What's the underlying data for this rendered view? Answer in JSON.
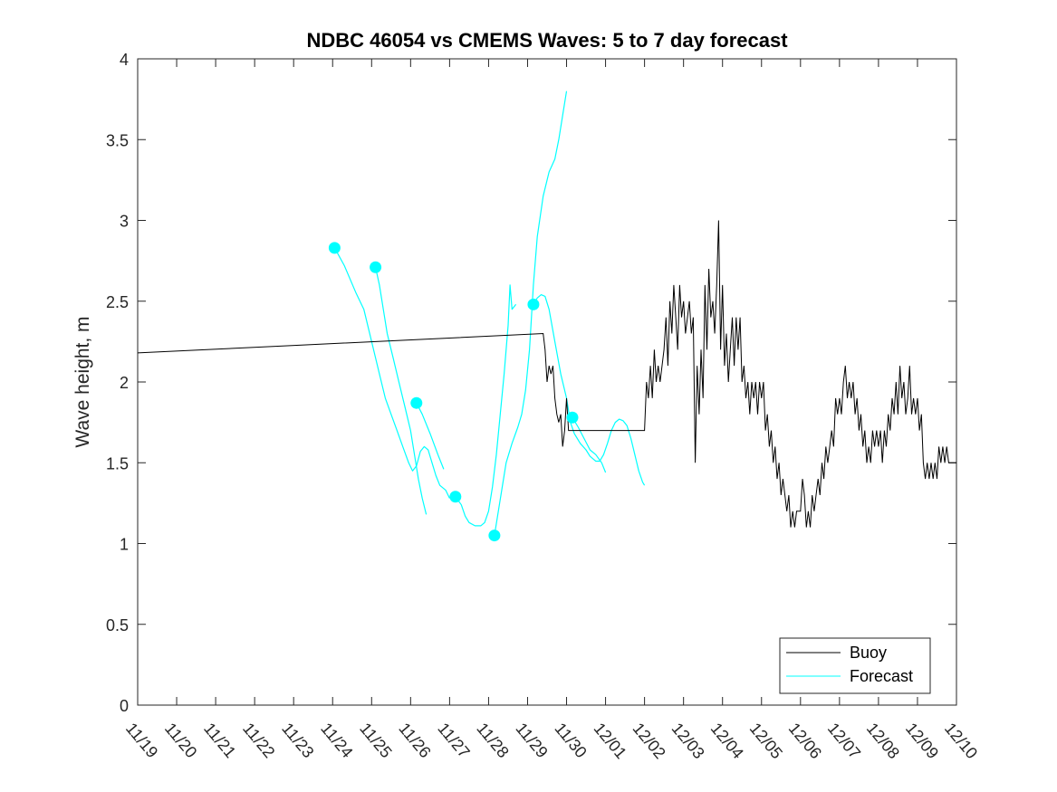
{
  "chart_data": {
    "type": "line",
    "title": "NDBC 46054 vs CMEMS Waves: 5 to 7 day forecast",
    "xlabel": "",
    "ylabel": "Wave height, m",
    "xlim": [
      0,
      21
    ],
    "ylim": [
      0,
      4
    ],
    "x_units": "days since 11/19",
    "x_tick_values": [
      0,
      1,
      2,
      3,
      4,
      5,
      6,
      7,
      8,
      9,
      10,
      11,
      12,
      13,
      14,
      15,
      16,
      17,
      18,
      19,
      20,
      21
    ],
    "x_tick_labels": [
      "11/19",
      "11/20",
      "11/21",
      "11/22",
      "11/23",
      "11/24",
      "11/25",
      "11/26",
      "11/27",
      "11/28",
      "11/29",
      "11/30",
      "12/01",
      "12/02",
      "12/03",
      "12/04",
      "12/05",
      "12/06",
      "12/07",
      "12/08",
      "12/09",
      "12/10"
    ],
    "y_tick_values": [
      0,
      0.5,
      1,
      1.5,
      2,
      2.5,
      3,
      3.5,
      4
    ],
    "y_tick_labels": [
      "0",
      "0.5",
      "1",
      "1.5",
      "2",
      "2.5",
      "3",
      "3.5",
      "4"
    ],
    "grid": false,
    "legend_position": "bottom-right",
    "legend": [
      {
        "label": "Buoy",
        "color": "#000000"
      },
      {
        "label": "Forecast",
        "color": "#00ffff"
      }
    ],
    "series": [
      {
        "name": "Buoy",
        "color": "#000000",
        "points": [
          [
            0.0,
            2.18
          ],
          [
            10.4,
            2.3
          ],
          [
            10.45,
            2.2
          ],
          [
            10.5,
            2.0
          ],
          [
            10.55,
            2.1
          ],
          [
            10.6,
            2.05
          ],
          [
            10.65,
            2.1
          ],
          [
            10.7,
            1.9
          ],
          [
            10.75,
            1.8
          ],
          [
            10.8,
            1.75
          ],
          [
            10.85,
            1.8
          ],
          [
            10.9,
            1.6
          ],
          [
            10.95,
            1.7
          ],
          [
            11.0,
            1.9
          ],
          [
            11.05,
            1.7
          ],
          [
            13.0,
            1.7
          ],
          [
            13.05,
            2.0
          ],
          [
            13.1,
            1.9
          ],
          [
            13.15,
            2.1
          ],
          [
            13.2,
            1.9
          ],
          [
            13.25,
            2.2
          ],
          [
            13.3,
            2.0
          ],
          [
            13.35,
            2.1
          ],
          [
            13.4,
            2.0
          ],
          [
            13.5,
            2.2
          ],
          [
            13.55,
            2.4
          ],
          [
            13.6,
            2.1
          ],
          [
            13.65,
            2.5
          ],
          [
            13.7,
            2.3
          ],
          [
            13.75,
            2.6
          ],
          [
            13.8,
            2.4
          ],
          [
            13.85,
            2.2
          ],
          [
            13.9,
            2.6
          ],
          [
            13.95,
            2.4
          ],
          [
            14.0,
            2.5
          ],
          [
            14.05,
            2.3
          ],
          [
            14.1,
            2.4
          ],
          [
            14.15,
            2.5
          ],
          [
            14.2,
            2.3
          ],
          [
            14.25,
            2.4
          ],
          [
            14.3,
            1.5
          ],
          [
            14.35,
            2.1
          ],
          [
            14.4,
            1.8
          ],
          [
            14.45,
            2.2
          ],
          [
            14.5,
            1.9
          ],
          [
            14.55,
            2.6
          ],
          [
            14.6,
            2.2
          ],
          [
            14.65,
            2.7
          ],
          [
            14.7,
            2.4
          ],
          [
            14.75,
            2.5
          ],
          [
            14.8,
            2.3
          ],
          [
            14.85,
            2.6
          ],
          [
            14.9,
            3.0
          ],
          [
            14.95,
            2.2
          ],
          [
            15.0,
            2.6
          ],
          [
            15.05,
            2.1
          ],
          [
            15.1,
            2.3
          ],
          [
            15.15,
            2.0
          ],
          [
            15.2,
            2.2
          ],
          [
            15.25,
            2.4
          ],
          [
            15.3,
            2.1
          ],
          [
            15.35,
            2.4
          ],
          [
            15.4,
            2.2
          ],
          [
            15.45,
            2.4
          ],
          [
            15.5,
            2.0
          ],
          [
            15.55,
            2.1
          ],
          [
            15.6,
            1.9
          ],
          [
            15.65,
            2.0
          ],
          [
            15.7,
            1.8
          ],
          [
            15.75,
            2.0
          ],
          [
            15.8,
            1.9
          ],
          [
            15.85,
            2.0
          ],
          [
            15.9,
            1.8
          ],
          [
            15.95,
            2.0
          ],
          [
            16.0,
            1.9
          ],
          [
            16.05,
            2.0
          ],
          [
            16.1,
            1.7
          ],
          [
            16.15,
            1.8
          ],
          [
            16.2,
            1.6
          ],
          [
            16.25,
            1.7
          ],
          [
            16.3,
            1.5
          ],
          [
            16.35,
            1.6
          ],
          [
            16.4,
            1.4
          ],
          [
            16.45,
            1.5
          ],
          [
            16.5,
            1.3
          ],
          [
            16.55,
            1.4
          ],
          [
            16.6,
            1.3
          ],
          [
            16.65,
            1.2
          ],
          [
            16.7,
            1.3
          ],
          [
            16.75,
            1.1
          ],
          [
            16.8,
            1.2
          ],
          [
            16.85,
            1.1
          ],
          [
            16.9,
            1.2
          ],
          [
            17.0,
            1.2
          ],
          [
            17.05,
            1.4
          ],
          [
            17.1,
            1.3
          ],
          [
            17.15,
            1.1
          ],
          [
            17.2,
            1.2
          ],
          [
            17.25,
            1.1
          ],
          [
            17.3,
            1.3
          ],
          [
            17.35,
            1.2
          ],
          [
            17.4,
            1.3
          ],
          [
            17.45,
            1.4
          ],
          [
            17.5,
            1.3
          ],
          [
            17.55,
            1.5
          ],
          [
            17.6,
            1.4
          ],
          [
            17.65,
            1.6
          ],
          [
            17.7,
            1.5
          ],
          [
            17.75,
            1.6
          ],
          [
            17.8,
            1.7
          ],
          [
            17.85,
            1.6
          ],
          [
            17.9,
            1.9
          ],
          [
            17.95,
            1.8
          ],
          [
            18.0,
            1.9
          ],
          [
            18.05,
            1.8
          ],
          [
            18.1,
            2.0
          ],
          [
            18.15,
            2.1
          ],
          [
            18.2,
            1.9
          ],
          [
            18.25,
            2.0
          ],
          [
            18.3,
            1.9
          ],
          [
            18.35,
            2.0
          ],
          [
            18.4,
            1.8
          ],
          [
            18.45,
            1.9
          ],
          [
            18.5,
            1.7
          ],
          [
            18.55,
            1.8
          ],
          [
            18.6,
            1.6
          ],
          [
            18.65,
            1.7
          ],
          [
            18.7,
            1.5
          ],
          [
            18.75,
            1.6
          ],
          [
            18.8,
            1.5
          ],
          [
            18.85,
            1.7
          ],
          [
            18.9,
            1.6
          ],
          [
            18.95,
            1.7
          ],
          [
            19.0,
            1.6
          ],
          [
            19.05,
            1.7
          ],
          [
            19.1,
            1.5
          ],
          [
            19.15,
            1.7
          ],
          [
            19.2,
            1.6
          ],
          [
            19.25,
            1.8
          ],
          [
            19.3,
            1.7
          ],
          [
            19.35,
            1.9
          ],
          [
            19.4,
            1.8
          ],
          [
            19.45,
            2.0
          ],
          [
            19.5,
            1.8
          ],
          [
            19.55,
            2.1
          ],
          [
            19.6,
            1.9
          ],
          [
            19.65,
            2.0
          ],
          [
            19.7,
            1.8
          ],
          [
            19.75,
            1.9
          ],
          [
            19.8,
            2.1
          ],
          [
            19.85,
            1.8
          ],
          [
            19.9,
            1.9
          ],
          [
            19.95,
            1.8
          ],
          [
            20.0,
            1.9
          ],
          [
            20.05,
            1.7
          ],
          [
            20.1,
            1.8
          ],
          [
            20.15,
            1.5
          ],
          [
            20.2,
            1.4
          ],
          [
            20.25,
            1.5
          ],
          [
            20.3,
            1.4
          ],
          [
            20.35,
            1.5
          ],
          [
            20.4,
            1.4
          ],
          [
            20.45,
            1.5
          ],
          [
            20.5,
            1.4
          ],
          [
            20.55,
            1.6
          ],
          [
            20.6,
            1.5
          ],
          [
            20.65,
            1.6
          ],
          [
            20.7,
            1.5
          ],
          [
            20.75,
            1.6
          ],
          [
            20.8,
            1.5
          ],
          [
            21.0,
            1.5
          ]
        ]
      },
      {
        "name": "Forecast",
        "color": "#00ffff",
        "segments": [
          [
            [
              5.05,
              2.83
            ],
            [
              5.3,
              2.72
            ],
            [
              5.6,
              2.55
            ],
            [
              5.8,
              2.45
            ],
            [
              6.0,
              2.25
            ],
            [
              6.2,
              2.05
            ],
            [
              6.35,
              1.9
            ],
            [
              6.5,
              1.8
            ],
            [
              6.65,
              1.7
            ],
            [
              6.8,
              1.6
            ],
            [
              6.95,
              1.5
            ],
            [
              7.05,
              1.45
            ],
            [
              7.15,
              1.48
            ],
            [
              7.25,
              1.57
            ],
            [
              7.35,
              1.6
            ],
            [
              7.45,
              1.58
            ],
            [
              7.55,
              1.5
            ],
            [
              7.65,
              1.42
            ],
            [
              7.75,
              1.36
            ],
            [
              7.9,
              1.33
            ],
            [
              8.0,
              1.28
            ]
          ],
          [
            [
              6.1,
              2.71
            ],
            [
              6.2,
              2.6
            ],
            [
              6.3,
              2.45
            ],
            [
              6.4,
              2.3
            ],
            [
              6.55,
              2.15
            ],
            [
              6.7,
              2.0
            ],
            [
              6.85,
              1.85
            ],
            [
              7.0,
              1.7
            ],
            [
              7.1,
              1.55
            ],
            [
              7.2,
              1.4
            ],
            [
              7.3,
              1.28
            ],
            [
              7.4,
              1.18
            ]
          ],
          [
            [
              7.15,
              1.87
            ],
            [
              7.3,
              1.8
            ],
            [
              7.5,
              1.68
            ],
            [
              7.7,
              1.55
            ],
            [
              7.85,
              1.46
            ]
          ],
          [
            [
              8.15,
              1.29
            ],
            [
              8.3,
              1.24
            ],
            [
              8.4,
              1.17
            ],
            [
              8.5,
              1.13
            ],
            [
              8.65,
              1.11
            ],
            [
              8.8,
              1.11
            ],
            [
              8.9,
              1.13
            ],
            [
              9.0,
              1.2
            ],
            [
              9.1,
              1.35
            ],
            [
              9.2,
              1.55
            ],
            [
              9.3,
              1.8
            ],
            [
              9.4,
              2.05
            ],
            [
              9.5,
              2.35
            ],
            [
              9.55,
              2.6
            ],
            [
              9.6,
              2.45
            ],
            [
              9.7,
              2.48
            ]
          ],
          [
            [
              9.15,
              1.05
            ],
            [
              9.25,
              1.2
            ],
            [
              9.35,
              1.35
            ],
            [
              9.45,
              1.5
            ],
            [
              9.6,
              1.62
            ],
            [
              9.75,
              1.72
            ],
            [
              9.85,
              1.8
            ],
            [
              9.95,
              1.95
            ],
            [
              10.05,
              2.2
            ],
            [
              10.15,
              2.6
            ],
            [
              10.25,
              2.9
            ],
            [
              10.4,
              3.15
            ],
            [
              10.55,
              3.3
            ],
            [
              10.7,
              3.38
            ],
            [
              10.8,
              3.5
            ],
            [
              10.9,
              3.65
            ],
            [
              11.0,
              3.8
            ]
          ],
          [
            [
              10.15,
              2.48
            ],
            [
              10.25,
              2.52
            ],
            [
              10.35,
              2.54
            ],
            [
              10.45,
              2.53
            ],
            [
              10.55,
              2.45
            ],
            [
              10.7,
              2.25
            ],
            [
              10.85,
              2.05
            ],
            [
              11.0,
              1.9
            ],
            [
              11.1,
              1.75
            ],
            [
              11.2,
              1.68
            ],
            [
              11.35,
              1.62
            ],
            [
              11.5,
              1.58
            ],
            [
              11.6,
              1.54
            ],
            [
              11.75,
              1.51
            ],
            [
              11.85,
              1.51
            ],
            [
              11.95,
              1.55
            ],
            [
              12.05,
              1.62
            ],
            [
              12.15,
              1.7
            ],
            [
              12.25,
              1.75
            ],
            [
              12.35,
              1.77
            ],
            [
              12.45,
              1.76
            ],
            [
              12.55,
              1.73
            ],
            [
              12.65,
              1.65
            ],
            [
              12.75,
              1.55
            ],
            [
              12.85,
              1.45
            ],
            [
              12.95,
              1.38
            ],
            [
              13.0,
              1.36
            ]
          ],
          [
            [
              11.15,
              1.78
            ],
            [
              11.3,
              1.72
            ],
            [
              11.45,
              1.65
            ],
            [
              11.6,
              1.58
            ],
            [
              11.75,
              1.55
            ],
            [
              11.9,
              1.5
            ],
            [
              12.0,
              1.44
            ]
          ]
        ],
        "markers": [
          [
            5.05,
            2.83
          ],
          [
            6.1,
            2.71
          ],
          [
            7.15,
            1.87
          ],
          [
            8.15,
            1.29
          ],
          [
            9.15,
            1.05
          ],
          [
            10.15,
            2.48
          ],
          [
            11.15,
            1.78
          ]
        ]
      }
    ]
  }
}
